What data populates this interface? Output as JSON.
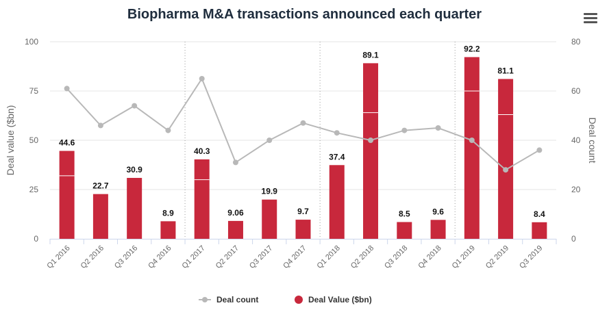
{
  "title": "Biopharma M&A transactions announced each quarter",
  "menu_icon": "hamburger-menu-icon",
  "legend": {
    "deal_count": "Deal count",
    "deal_value": "Deal Value ($bn)"
  },
  "chart_data": {
    "type": "bar",
    "title": "Biopharma M&A transactions announced each quarter",
    "categories": [
      "Q1 2016",
      "Q2 2016",
      "Q3 2016",
      "Q4 2016",
      "Q1 2017",
      "Q2 2017",
      "Q3 2017",
      "Q4 2017",
      "Q1 2018",
      "Q2 2018",
      "Q3 2018",
      "Q4 2018",
      "Q1 2019",
      "Q2 2019",
      "Q3 2019"
    ],
    "series": [
      {
        "name": "Deal Value ($bn)",
        "type": "bar",
        "axis": "left",
        "color": "#c8283c",
        "values": [
          44.6,
          22.7,
          30.9,
          8.9,
          40.3,
          9.06,
          19.9,
          9.7,
          37.4,
          89.1,
          8.5,
          9.6,
          92.2,
          81.1,
          8.4
        ],
        "labels": [
          "44.6",
          "22.7",
          "30.9",
          "8.9",
          "40.3",
          "9.06",
          "19.9",
          "9.7",
          "37.4",
          "89.1",
          "8.5",
          "9.6",
          "92.2",
          "81.1",
          "8.4"
        ],
        "split_values": [
          32,
          null,
          null,
          null,
          30,
          null,
          null,
          null,
          null,
          64,
          null,
          null,
          75,
          63,
          null
        ]
      },
      {
        "name": "Deal count",
        "type": "line",
        "axis": "right",
        "color": "#b8b8b8",
        "values": [
          61,
          46,
          54,
          44,
          65,
          31,
          40,
          47,
          43,
          40,
          44,
          45,
          40,
          28,
          36
        ]
      }
    ],
    "ylabel_left": "Deal value ($bn)",
    "ylabel_right": "Deal count",
    "ylim_left": [
      0,
      100
    ],
    "ylim_right": [
      0,
      80
    ],
    "yticks_left": [
      0,
      25,
      50,
      75,
      100
    ],
    "yticks_right": [
      0,
      20,
      40,
      60,
      80
    ],
    "year_dividers_after": [
      3,
      7,
      11
    ],
    "grid": true,
    "legend_position": "bottom-center"
  }
}
